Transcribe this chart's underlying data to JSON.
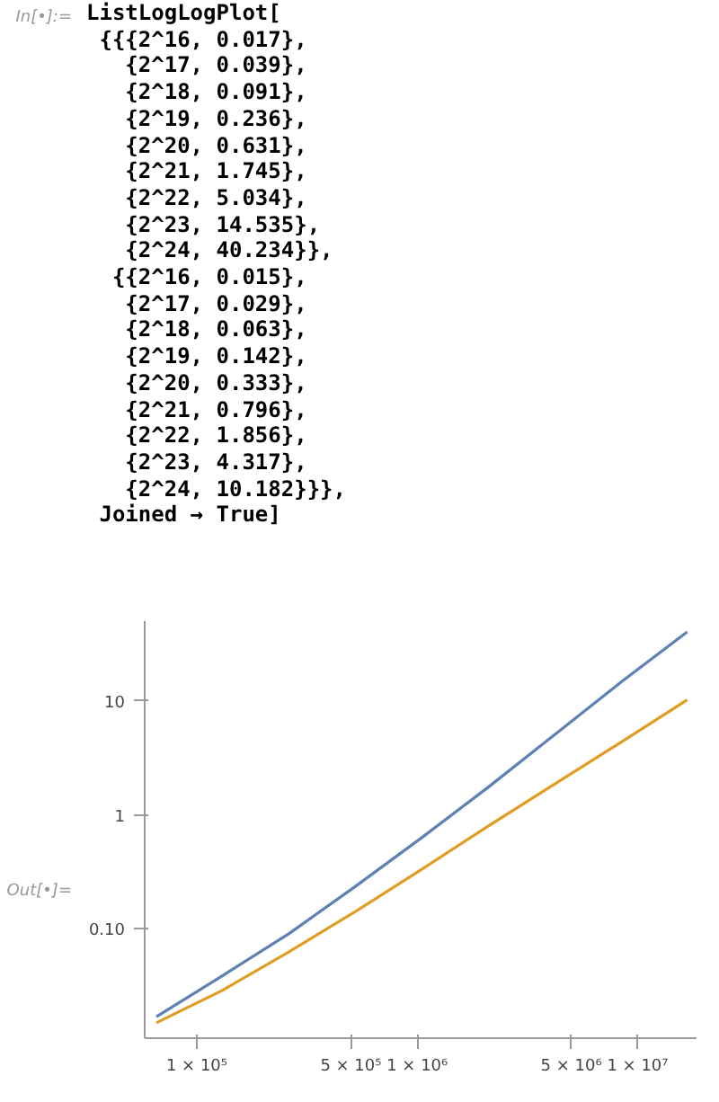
{
  "chart_data": {
    "type": "line",
    "annotations": [
      "In[•]:=",
      "ListLogLogPlot[\n {{{2^16, 0.017},\n   {2^17, 0.039},\n   {2^18, 0.091},\n   {2^19, 0.236},\n   {2^20, 0.631},\n   {2^21, 1.745},\n   {2^22, 5.034},\n   {2^23, 14.535},\n   {2^24, 40.234}},\n  {{2^16, 0.015},\n   {2^17, 0.029},\n   {2^18, 0.063},\n   {2^19, 0.142},\n   {2^20, 0.333},\n   {2^21, 0.796},\n   {2^22, 1.856},\n   {2^23, 4.317},\n   {2^24, 10.182}}},\n Joined → True]",
      "Out[•]="
    ],
    "x": [
      65536,
      131072,
      262144,
      524288,
      1048576,
      2097152,
      4194304,
      8388608,
      16777216
    ],
    "series": [
      {
        "color": "#5e81b5",
        "values": [
          0.017,
          0.039,
          0.091,
          0.236,
          0.631,
          1.745,
          5.034,
          14.535,
          40.234
        ]
      },
      {
        "color": "#e19c24",
        "values": [
          0.015,
          0.029,
          0.063,
          0.142,
          0.333,
          0.796,
          1.856,
          4.317,
          10.182
        ]
      }
    ],
    "log": "xy",
    "xlim": [
      58000,
      18500000
    ],
    "ylim": [
      0.011,
      50
    ],
    "xticks": [
      {
        "value": 100000,
        "label": "1 × 10⁵"
      },
      {
        "value": 500000,
        "label": "5 × 10⁵"
      },
      {
        "value": 1000000,
        "label": "1 × 10⁶"
      },
      {
        "value": 5000000,
        "label": "5 × 10⁶"
      },
      {
        "value": 10000000,
        "label": "1 × 10⁷"
      }
    ],
    "yticks": [
      {
        "value": 0.1,
        "label": "0.10"
      },
      1,
      10
    ]
  }
}
